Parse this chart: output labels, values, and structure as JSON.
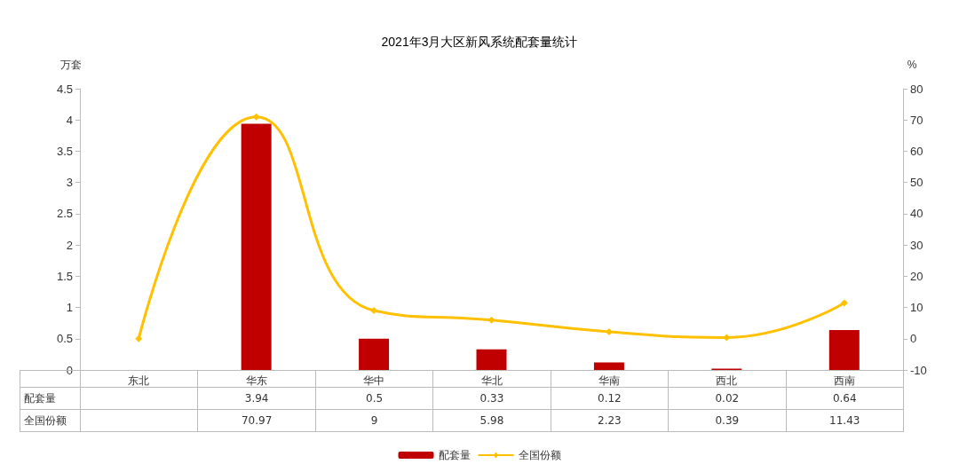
{
  "chart_data": {
    "type": "bar",
    "title": "2021年3月大区新风系统配套量统计",
    "ylabel": "万套",
    "y2label": "%",
    "categories": [
      "东北",
      "华东",
      "华中",
      "华北",
      "华南",
      "西北",
      "西南"
    ],
    "series": [
      {
        "name": "配套量",
        "color": "#c00000",
        "values": [
          null,
          3.94,
          0.5,
          0.33,
          0.12,
          0.02,
          0.64
        ],
        "value_labels": [
          null,
          "3.94",
          "0.5",
          "0.33",
          "0.12",
          "0.02",
          "0.64"
        ]
      },
      {
        "name": "全国份额",
        "type": "line",
        "axis": "y2",
        "color": "#ffc000",
        "values": [
          0,
          70.97,
          9,
          5.98,
          2.23,
          0.39,
          11.43
        ],
        "value_labels": [
          null,
          "70.97",
          "9",
          "5.98",
          "2.23",
          "0.39",
          "11.43"
        ]
      }
    ],
    "ylim": [
      0,
      4.5
    ],
    "yticks": [
      0,
      0.5,
      1,
      1.5,
      2,
      2.5,
      3,
      3.5,
      4,
      4.5
    ],
    "y2lim": [
      -10,
      80
    ],
    "y2ticks": [
      -10,
      0,
      10,
      20,
      30,
      40,
      50,
      60,
      70,
      80
    ],
    "grid": false,
    "legend": "bottom",
    "marker": "diamond",
    "line_style": "solid"
  }
}
